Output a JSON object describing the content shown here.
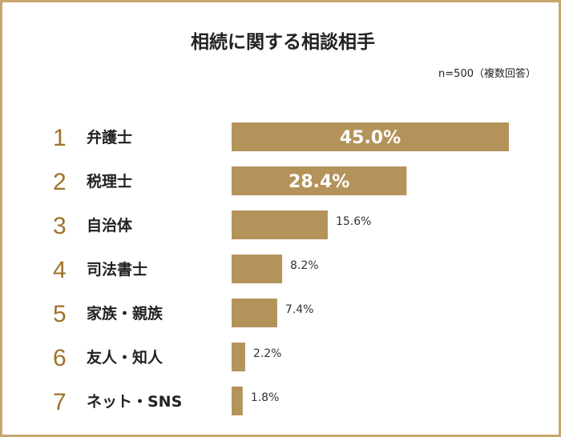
{
  "chart_data": {
    "type": "bar",
    "title": "相続に関する相談相手",
    "subtitle": "n=500（複数回答）",
    "ranks": [
      "1",
      "2",
      "3",
      "4",
      "5",
      "6",
      "7"
    ],
    "categories": [
      "弁護士",
      "税理士",
      "自治体",
      "司法書士",
      "家族・親族",
      "友人・知人",
      "ネット・SNS"
    ],
    "values": [
      45.0,
      28.4,
      15.6,
      8.2,
      7.4,
      2.2,
      1.8
    ],
    "value_labels": [
      "45.0%",
      "28.4%",
      "15.6%",
      "8.2%",
      "7.4%",
      "2.2%",
      "1.8%"
    ],
    "xlim": [
      0,
      45
    ],
    "grid": false,
    "colors": {
      "bar": "#b4935b",
      "rank": "#a0712a",
      "border": "#c9a56e"
    }
  }
}
